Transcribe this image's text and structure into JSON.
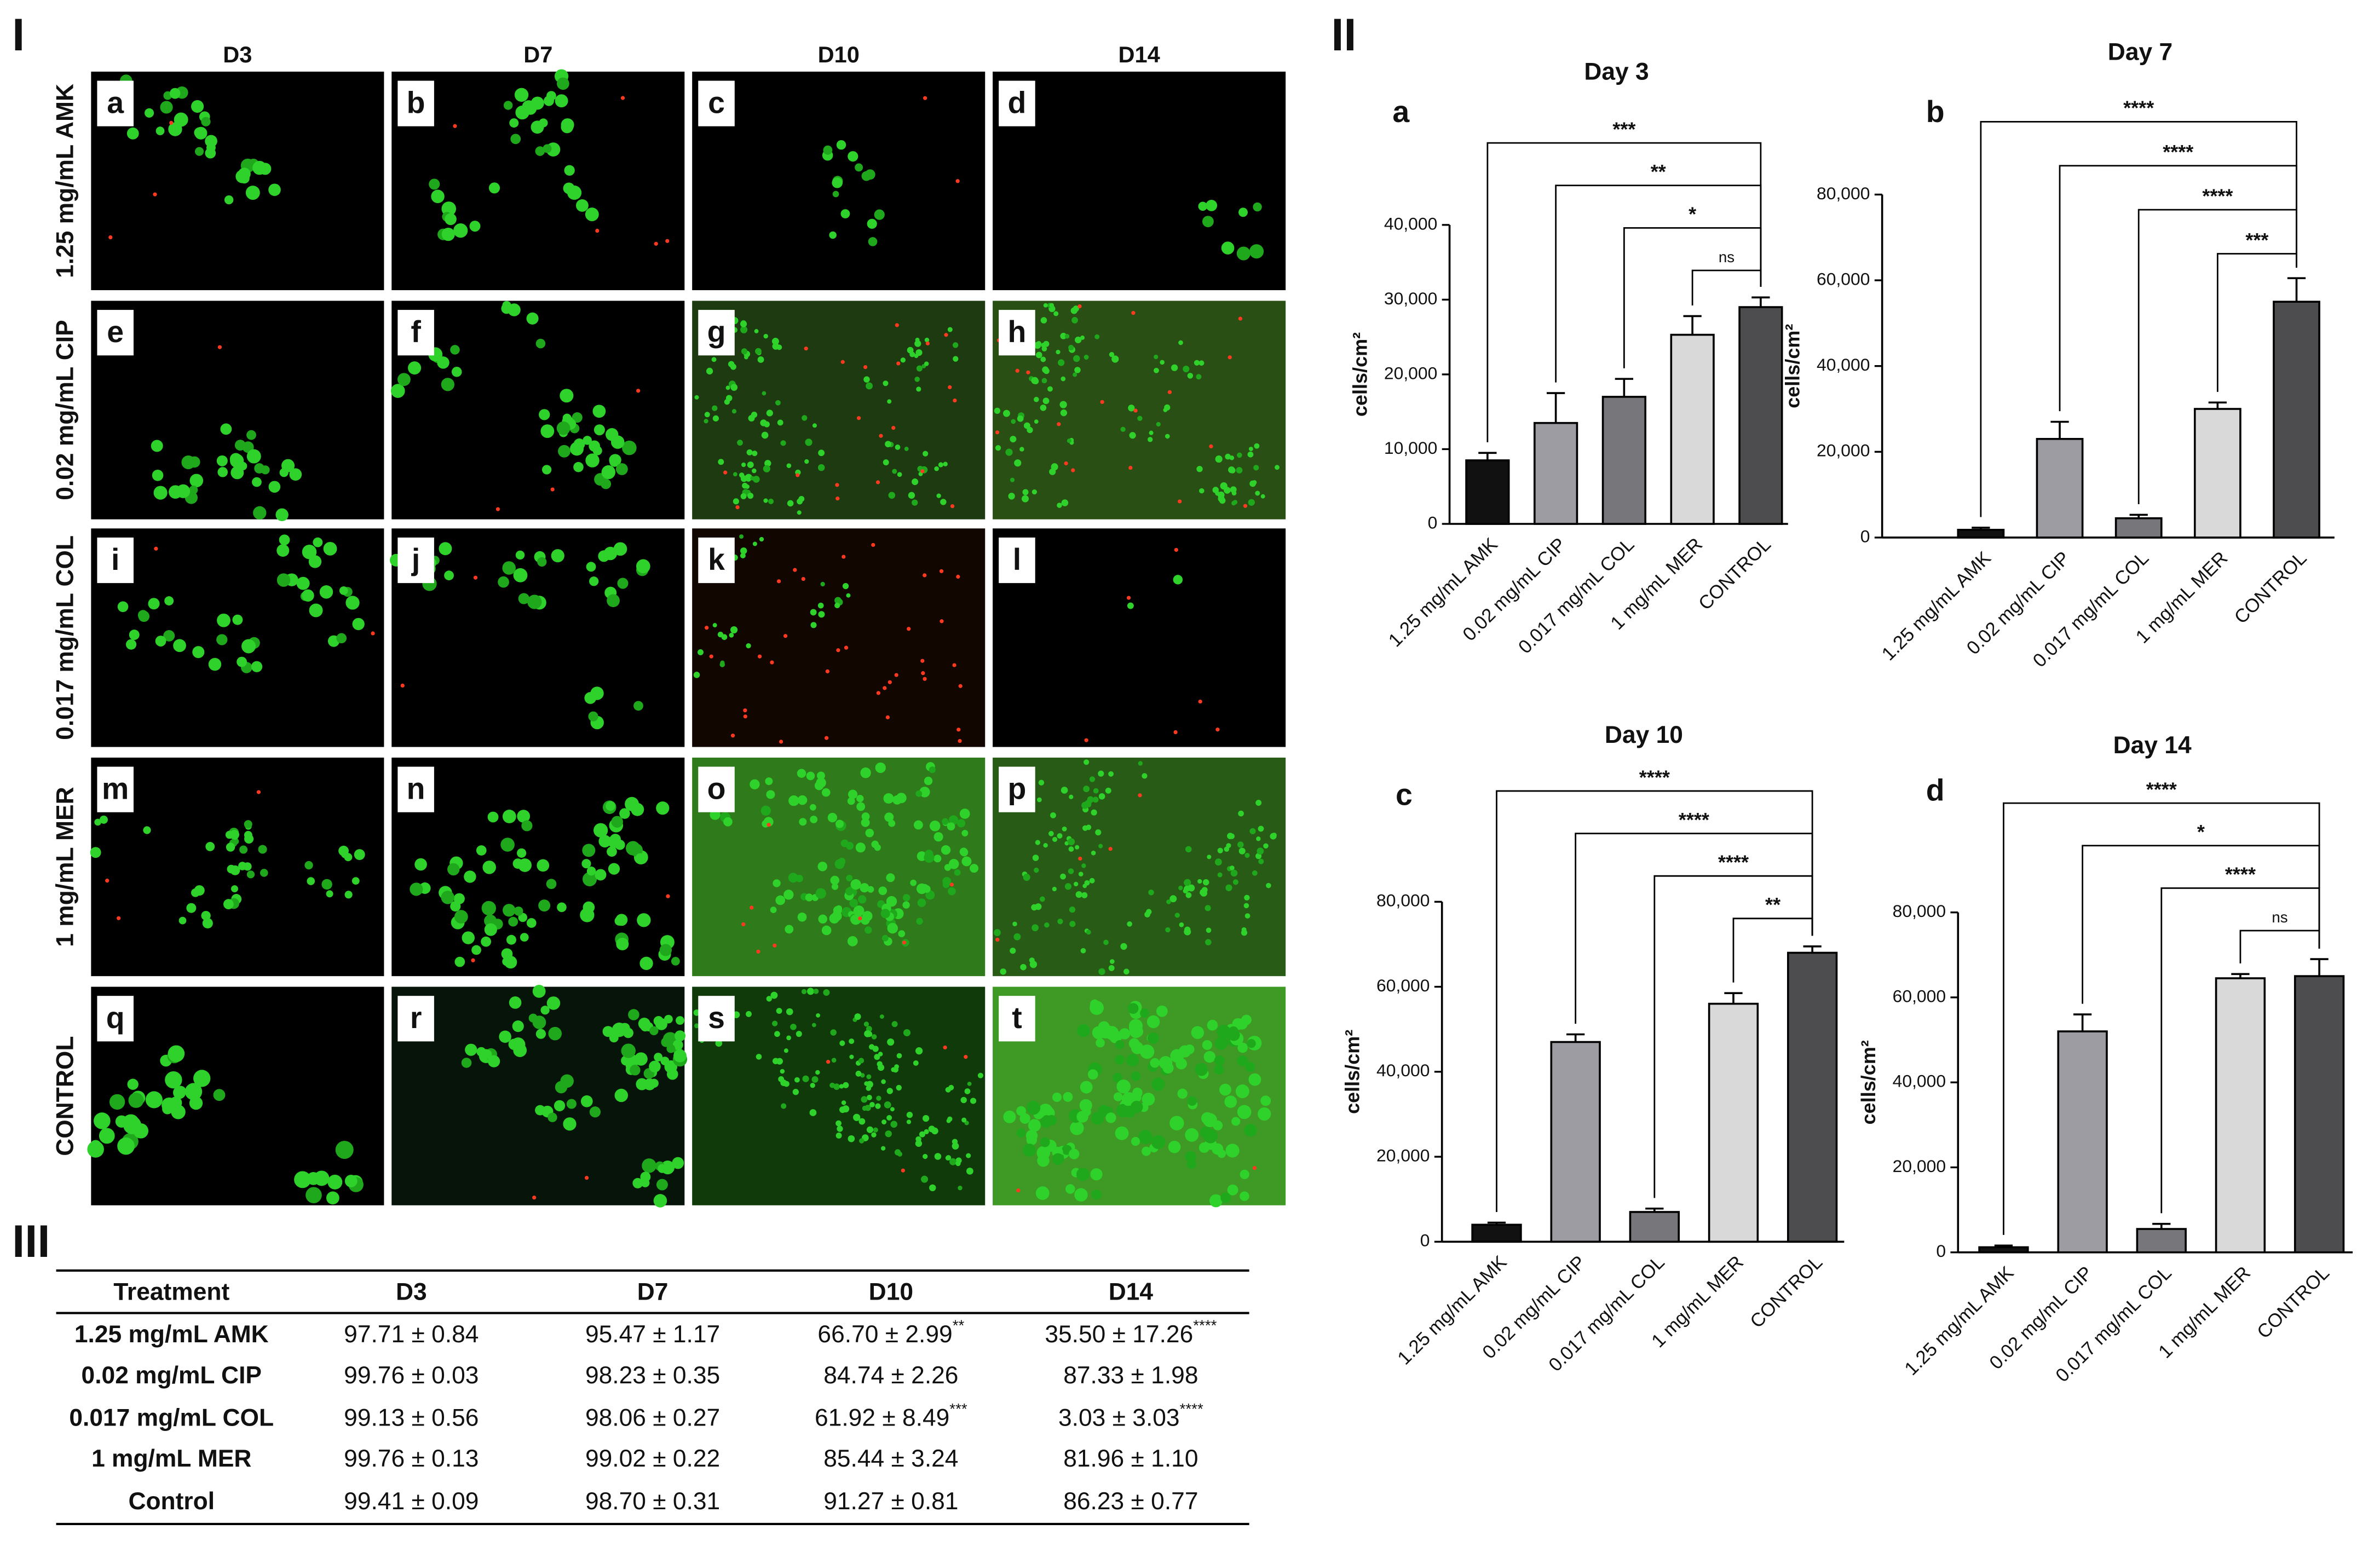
{
  "panel_labels": [
    "I",
    "II",
    "III"
  ],
  "micrographs": {
    "columns": [
      "D3",
      "D7",
      "D10",
      "D14"
    ],
    "rows": [
      "1.25 mg/mL AMK",
      "0.02 mg/mL CIP",
      "0.017 mg/mL COL",
      "1 mg/mL MER",
      "CONTROL"
    ],
    "letters": [
      "a",
      "b",
      "c",
      "d",
      "e",
      "f",
      "g",
      "h",
      "i",
      "j",
      "k",
      "l",
      "m",
      "n",
      "o",
      "p",
      "q",
      "r",
      "s",
      "t"
    ]
  },
  "table": {
    "header": [
      "Treatment",
      "D3",
      "D7",
      "D10",
      "D14"
    ],
    "rows": [
      [
        "1.25 mg/mL AMK",
        "97.71 ± 0.84",
        "95.47 ± 1.17",
        {
          "text": "66.70 ± 2.99",
          "sup": "**"
        },
        {
          "text": "35.50 ± 17.26",
          "sup": "****"
        }
      ],
      [
        "0.02 mg/mL CIP",
        "99.76 ± 0.03",
        "98.23 ± 0.35",
        "84.74 ± 2.26",
        "87.33 ± 1.98"
      ],
      [
        "0.017 mg/mL COL",
        "99.13 ± 0.56",
        "98.06 ± 0.27",
        {
          "text": "61.92 ± 8.49",
          "sup": "***"
        },
        {
          "text": "3.03 ± 3.03",
          "sup": "****"
        }
      ],
      [
        "1 mg/mL MER",
        "99.76 ± 0.13",
        "99.02 ± 0.22",
        "85.44 ± 3.24",
        "81.96 ± 1.10"
      ],
      [
        "Control",
        "99.41 ± 0.09",
        "98.70 ± 0.31",
        "91.27 ± 0.81",
        "86.23 ± 0.77"
      ]
    ]
  },
  "chart_data": [
    {
      "type": "bar",
      "title": "Day 3",
      "label": "a",
      "ylabel": "cells/cm²",
      "categories": [
        "1.25 mg/mL AMK",
        "0.02 mg/mL CIP",
        "0.017 mg/mL COL",
        "1 mg/mL MER",
        "CONTROL"
      ],
      "values": [
        8500,
        13500,
        17000,
        25300,
        29000
      ],
      "errors": [
        1000,
        4000,
        2400,
        2500,
        1300
      ],
      "colors": [
        "#111111",
        "#9c9ca2",
        "#77777b",
        "#d9d9d9",
        "#4d4d50"
      ],
      "ylim": [
        0,
        40000
      ],
      "yticks": [
        0,
        {
          "value": 10000,
          "label": "10,000"
        },
        {
          "value": 20000,
          "label": "20,000"
        },
        {
          "value": 30000,
          "label": "30,000"
        },
        {
          "value": 40000,
          "label": "40,000"
        }
      ],
      "comparisons": [
        {
          "from": 0,
          "to": 4,
          "label": "***"
        },
        {
          "from": 1,
          "to": 4,
          "label": "**"
        },
        {
          "from": 2,
          "to": 4,
          "label": "*"
        },
        {
          "from": 3,
          "to": 4,
          "label": "ns"
        }
      ]
    },
    {
      "type": "bar",
      "title": "Day 7",
      "label": "b",
      "ylabel": "cells/cm²",
      "categories": [
        "1.25 mg/mL AMK",
        "0.02 mg/mL CIP",
        "0.017 mg/mL COL",
        "1 mg/mL MER",
        "CONTROL"
      ],
      "values": [
        1800,
        23000,
        4500,
        30000,
        55000
      ],
      "errors": [
        500,
        4000,
        800,
        1500,
        5500
      ],
      "colors": [
        "#111111",
        "#9c9ca2",
        "#77777b",
        "#d9d9d9",
        "#4d4d50"
      ],
      "ylim": [
        0,
        80000
      ],
      "yticks": [
        0,
        {
          "value": 20000,
          "label": "20,000"
        },
        {
          "value": 40000,
          "label": "40,000"
        },
        {
          "value": 60000,
          "label": "60,000"
        },
        {
          "value": 80000,
          "label": "80,000"
        }
      ],
      "comparisons": [
        {
          "from": 0,
          "to": 4,
          "label": "****"
        },
        {
          "from": 1,
          "to": 4,
          "label": "****"
        },
        {
          "from": 2,
          "to": 4,
          "label": "****"
        },
        {
          "from": 3,
          "to": 4,
          "label": "***"
        }
      ]
    },
    {
      "type": "bar",
      "title": "Day 10",
      "label": "c",
      "ylabel": "cells/cm²",
      "categories": [
        "1.25 mg/mL AMK",
        "0.02 mg/mL CIP",
        "0.017 mg/mL COL",
        "1 mg/mL MER",
        "CONTROL"
      ],
      "values": [
        4000,
        47000,
        7000,
        56000,
        68000
      ],
      "errors": [
        500,
        1800,
        800,
        2500,
        1500
      ],
      "colors": [
        "#111111",
        "#9c9ca2",
        "#77777b",
        "#d9d9d9",
        "#4d4d50"
      ],
      "ylim": [
        0,
        80000
      ],
      "yticks": [
        0,
        {
          "value": 20000,
          "label": "20,000"
        },
        {
          "value": 40000,
          "label": "40,000"
        },
        {
          "value": 60000,
          "label": "60,000"
        },
        {
          "value": 80000,
          "label": "80,000"
        }
      ],
      "comparisons": [
        {
          "from": 0,
          "to": 4,
          "label": "****"
        },
        {
          "from": 1,
          "to": 4,
          "label": "****"
        },
        {
          "from": 2,
          "to": 4,
          "label": "****"
        },
        {
          "from": 3,
          "to": 4,
          "label": "**"
        }
      ]
    },
    {
      "type": "bar",
      "title": "Day 14",
      "label": "d",
      "ylabel": "cells/cm²",
      "categories": [
        "1.25 mg/mL AMK",
        "0.02 mg/mL CIP",
        "0.017 mg/mL COL",
        "1 mg/mL MER",
        "CONTROL"
      ],
      "values": [
        1200,
        52000,
        5500,
        64500,
        65000
      ],
      "errors": [
        400,
        4000,
        1200,
        1000,
        4000
      ],
      "colors": [
        "#111111",
        "#9c9ca2",
        "#77777b",
        "#d9d9d9",
        "#4d4d50"
      ],
      "ylim": [
        0,
        80000
      ],
      "yticks": [
        0,
        {
          "value": 20000,
          "label": "20,000"
        },
        {
          "value": 40000,
          "label": "40,000"
        },
        {
          "value": 60000,
          "label": "60,000"
        },
        {
          "value": 80000,
          "label": "80,000"
        }
      ],
      "comparisons": [
        {
          "from": 0,
          "to": 4,
          "label": "****"
        },
        {
          "from": 1,
          "to": 4,
          "label": "*"
        },
        {
          "from": 2,
          "to": 4,
          "label": "****"
        },
        {
          "from": 3,
          "to": 4,
          "label": "ns"
        }
      ]
    }
  ]
}
